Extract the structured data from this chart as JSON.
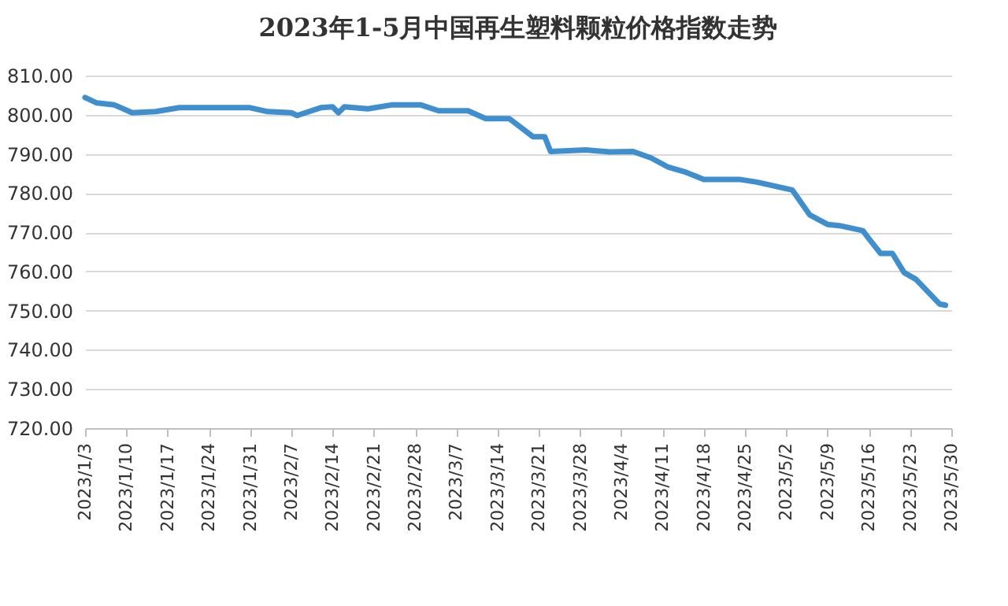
{
  "chart_data": {
    "type": "line",
    "title": "2023年1-5月中国再生塑料颗粒价格指数走势",
    "x": [
      "2023-01-03",
      "2023-01-05",
      "2023-01-08",
      "2023-01-11",
      "2023-01-15",
      "2023-01-19",
      "2023-01-31",
      "2023-02-03",
      "2023-02-07",
      "2023-02-08",
      "2023-02-09",
      "2023-02-12",
      "2023-02-14",
      "2023-02-15",
      "2023-02-16",
      "2023-02-20",
      "2023-02-24",
      "2023-03-01",
      "2023-03-04",
      "2023-03-09",
      "2023-03-12",
      "2023-03-16",
      "2023-03-20",
      "2023-03-22",
      "2023-03-23",
      "2023-03-29",
      "2023-04-02",
      "2023-04-06",
      "2023-04-09",
      "2023-04-12",
      "2023-04-15",
      "2023-04-18",
      "2023-04-24",
      "2023-04-27",
      "2023-05-03",
      "2023-05-06",
      "2023-05-09",
      "2023-05-11",
      "2023-05-15",
      "2023-05-16",
      "2023-05-18",
      "2023-05-20",
      "2023-05-22",
      "2023-05-24",
      "2023-05-28",
      "2023-05-29"
    ],
    "series": [
      {
        "color": "#3f8fce",
        "values": [
          804.4,
          803,
          802.5,
          800.5,
          800.8,
          801.8,
          801.8,
          800.8,
          800.5,
          799.8,
          800.3,
          801.8,
          802,
          800.5,
          802,
          801.5,
          802.5,
          802.5,
          801,
          801,
          799,
          799,
          794.4,
          794.4,
          790.6,
          791,
          790.5,
          790.6,
          789,
          786.6,
          785.3,
          783.5,
          783.5,
          782.8,
          780.8,
          774.4,
          772,
          771.7,
          770.4,
          768.4,
          764.6,
          764.6,
          759.7,
          758,
          751.7,
          751.4
        ]
      }
    ],
    "xlim": [
      "2023-01-03",
      "2023-05-30"
    ],
    "xticks": [
      {
        "value": "2023-01-03",
        "label": "2023/1/3"
      },
      {
        "value": "2023-01-10",
        "label": "2023/1/10"
      },
      {
        "value": "2023-01-17",
        "label": "2023/1/17"
      },
      {
        "value": "2023-01-24",
        "label": "2023/1/24"
      },
      {
        "value": "2023-01-31",
        "label": "2023/1/31"
      },
      {
        "value": "2023-02-07",
        "label": "2023/2/7"
      },
      {
        "value": "2023-02-14",
        "label": "2023/2/14"
      },
      {
        "value": "2023-02-21",
        "label": "2023/2/21"
      },
      {
        "value": "2023-02-28",
        "label": "2023/2/28"
      },
      {
        "value": "2023-03-07",
        "label": "2023/3/7"
      },
      {
        "value": "2023-03-14",
        "label": "2023/3/14"
      },
      {
        "value": "2023-03-21",
        "label": "2023/3/21"
      },
      {
        "value": "2023-03-28",
        "label": "2023/3/28"
      },
      {
        "value": "2023-04-04",
        "label": "2023/4/4"
      },
      {
        "value": "2023-04-11",
        "label": "2023/4/11"
      },
      {
        "value": "2023-04-18",
        "label": "2023/4/18"
      },
      {
        "value": "2023-04-25",
        "label": "2023/4/25"
      },
      {
        "value": "2023-05-02",
        "label": "2023/5/2"
      },
      {
        "value": "2023-05-09",
        "label": "2023/5/9"
      },
      {
        "value": "2023-05-16",
        "label": "2023/5/16"
      },
      {
        "value": "2023-05-23",
        "label": "2023/5/23"
      },
      {
        "value": "2023-05-30",
        "label": "2023/5/30"
      }
    ],
    "ylim": [
      720,
      810
    ],
    "yticks": [
      {
        "value": 720,
        "label": "720.00"
      },
      {
        "value": 730,
        "label": "730.00"
      },
      {
        "value": 740,
        "label": "740.00"
      },
      {
        "value": 750,
        "label": "750.00"
      },
      {
        "value": 760,
        "label": "760.00"
      },
      {
        "value": 770,
        "label": "770.00"
      },
      {
        "value": 780,
        "label": "780.00"
      },
      {
        "value": 790,
        "label": "790.00"
      },
      {
        "value": 800,
        "label": "800.00"
      },
      {
        "value": 810,
        "label": "810.00"
      }
    ],
    "grid": "y",
    "legend": false,
    "marker": "none",
    "line_style": "solid"
  }
}
